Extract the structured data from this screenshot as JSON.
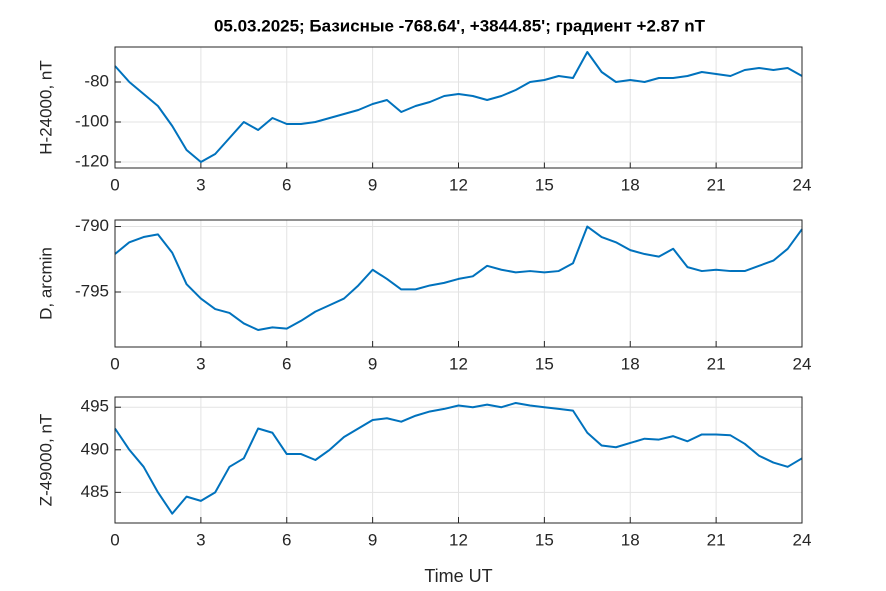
{
  "chart_data": [
    {
      "type": "line",
      "title": "05.03.2025;  Базисные  -768.64', +3844.85'; градиент +2.87 nT",
      "ylabel": "H-24000, nT",
      "color": "#0072bd",
      "grid": true,
      "x": [
        0,
        0.5,
        1,
        1.5,
        2,
        2.5,
        3,
        3.5,
        4,
        4.5,
        5,
        5.5,
        6,
        6.5,
        7,
        7.5,
        8,
        8.5,
        9,
        9.5,
        10,
        10.5,
        11,
        11.5,
        12,
        12.5,
        13,
        13.5,
        14,
        14.5,
        15,
        15.5,
        16,
        16.5,
        17,
        17.5,
        18,
        18.5,
        19,
        19.5,
        20,
        20.5,
        21,
        21.5,
        22,
        22.5,
        23,
        23.5,
        24
      ],
      "values": [
        -72,
        -80,
        -86,
        -92,
        -102,
        -114,
        -120,
        -116,
        -108,
        -100,
        -104,
        -98,
        -101,
        -101,
        -100,
        -98,
        -96,
        -94,
        -91,
        -89,
        -95,
        -92,
        -90,
        -87,
        -86,
        -87,
        -89,
        -87,
        -84,
        -80,
        -79,
        -77,
        -78,
        -65,
        -75,
        -80,
        -79,
        -80,
        -78,
        -78,
        -77,
        -75,
        -76,
        -77,
        -74,
        -73,
        -74,
        -73,
        -77
      ],
      "xlim": [
        0,
        24
      ],
      "xticks": [
        0,
        3,
        6,
        9,
        12,
        15,
        18,
        21,
        24
      ],
      "ylim": [
        -123,
        -62.5
      ],
      "yticks": [
        -120,
        -100,
        -80
      ]
    },
    {
      "type": "line",
      "ylabel": "D, arcmin",
      "color": "#0072bd",
      "grid": true,
      "x": [
        0,
        0.5,
        1,
        1.5,
        2,
        2.5,
        3,
        3.5,
        4,
        4.5,
        5,
        5.5,
        6,
        6.5,
        7,
        7.5,
        8,
        8.5,
        9,
        9.5,
        10,
        10.5,
        11,
        11.5,
        12,
        12.5,
        13,
        13.5,
        14,
        14.5,
        15,
        15.5,
        16,
        16.5,
        17,
        17.5,
        18,
        18.5,
        19,
        19.5,
        20,
        20.5,
        21,
        21.5,
        22,
        22.5,
        23,
        23.5,
        24
      ],
      "values": [
        -792.1,
        -791.2,
        -790.8,
        -790.6,
        -792,
        -794.4,
        -795.5,
        -796.3,
        -796.6,
        -797.4,
        -797.9,
        -797.7,
        -797.8,
        -797.2,
        -796.5,
        -796,
        -795.5,
        -794.5,
        -793.3,
        -794,
        -794.8,
        -794.8,
        -794.5,
        -794.3,
        -794,
        -793.8,
        -793,
        -793.3,
        -793.5,
        -793.4,
        -793.5,
        -793.4,
        -792.8,
        -790,
        -790.8,
        -791.2,
        -791.8,
        -792.1,
        -792.3,
        -791.7,
        -793.1,
        -793.4,
        -793.3,
        -793.4,
        -793.4,
        -793,
        -792.6,
        -791.7,
        -790.2
      ],
      "xlim": [
        0,
        24
      ],
      "xticks": [
        0,
        3,
        6,
        9,
        12,
        15,
        18,
        21,
        24
      ],
      "ylim": [
        -799.2,
        -789.5
      ],
      "yticks": [
        -795,
        -790
      ]
    },
    {
      "type": "line",
      "ylabel": "Z-49000, nT",
      "xlabel": "Time UT",
      "color": "#0072bd",
      "grid": true,
      "x": [
        0,
        0.5,
        1,
        1.5,
        2,
        2.5,
        3,
        3.5,
        4,
        4.5,
        5,
        5.5,
        6,
        6.5,
        7,
        7.5,
        8,
        8.5,
        9,
        9.5,
        10,
        10.5,
        11,
        11.5,
        12,
        12.5,
        13,
        13.5,
        14,
        14.5,
        15,
        15.5,
        16,
        16.5,
        17,
        17.5,
        18,
        18.5,
        19,
        19.5,
        20,
        20.5,
        21,
        21.5,
        22,
        22.5,
        23,
        23.5,
        24
      ],
      "values": [
        492.5,
        490,
        488,
        485,
        482.5,
        484.5,
        484,
        485,
        488,
        489,
        492.5,
        492,
        489.5,
        489.5,
        488.8,
        490,
        491.5,
        492.5,
        493.5,
        493.7,
        493.3,
        494,
        494.5,
        494.8,
        495.2,
        495,
        495.3,
        495,
        495.5,
        495.2,
        495,
        494.8,
        494.6,
        492,
        490.5,
        490.3,
        490.8,
        491.3,
        491.2,
        491.6,
        491,
        491.8,
        491.8,
        491.7,
        490.7,
        489.3,
        488.5,
        488,
        489
      ],
      "xlim": [
        0,
        24
      ],
      "xticks": [
        0,
        3,
        6,
        9,
        12,
        15,
        18,
        21,
        24
      ],
      "ylim": [
        481.4,
        496.2
      ],
      "yticks": [
        485,
        490,
        495
      ]
    }
  ]
}
